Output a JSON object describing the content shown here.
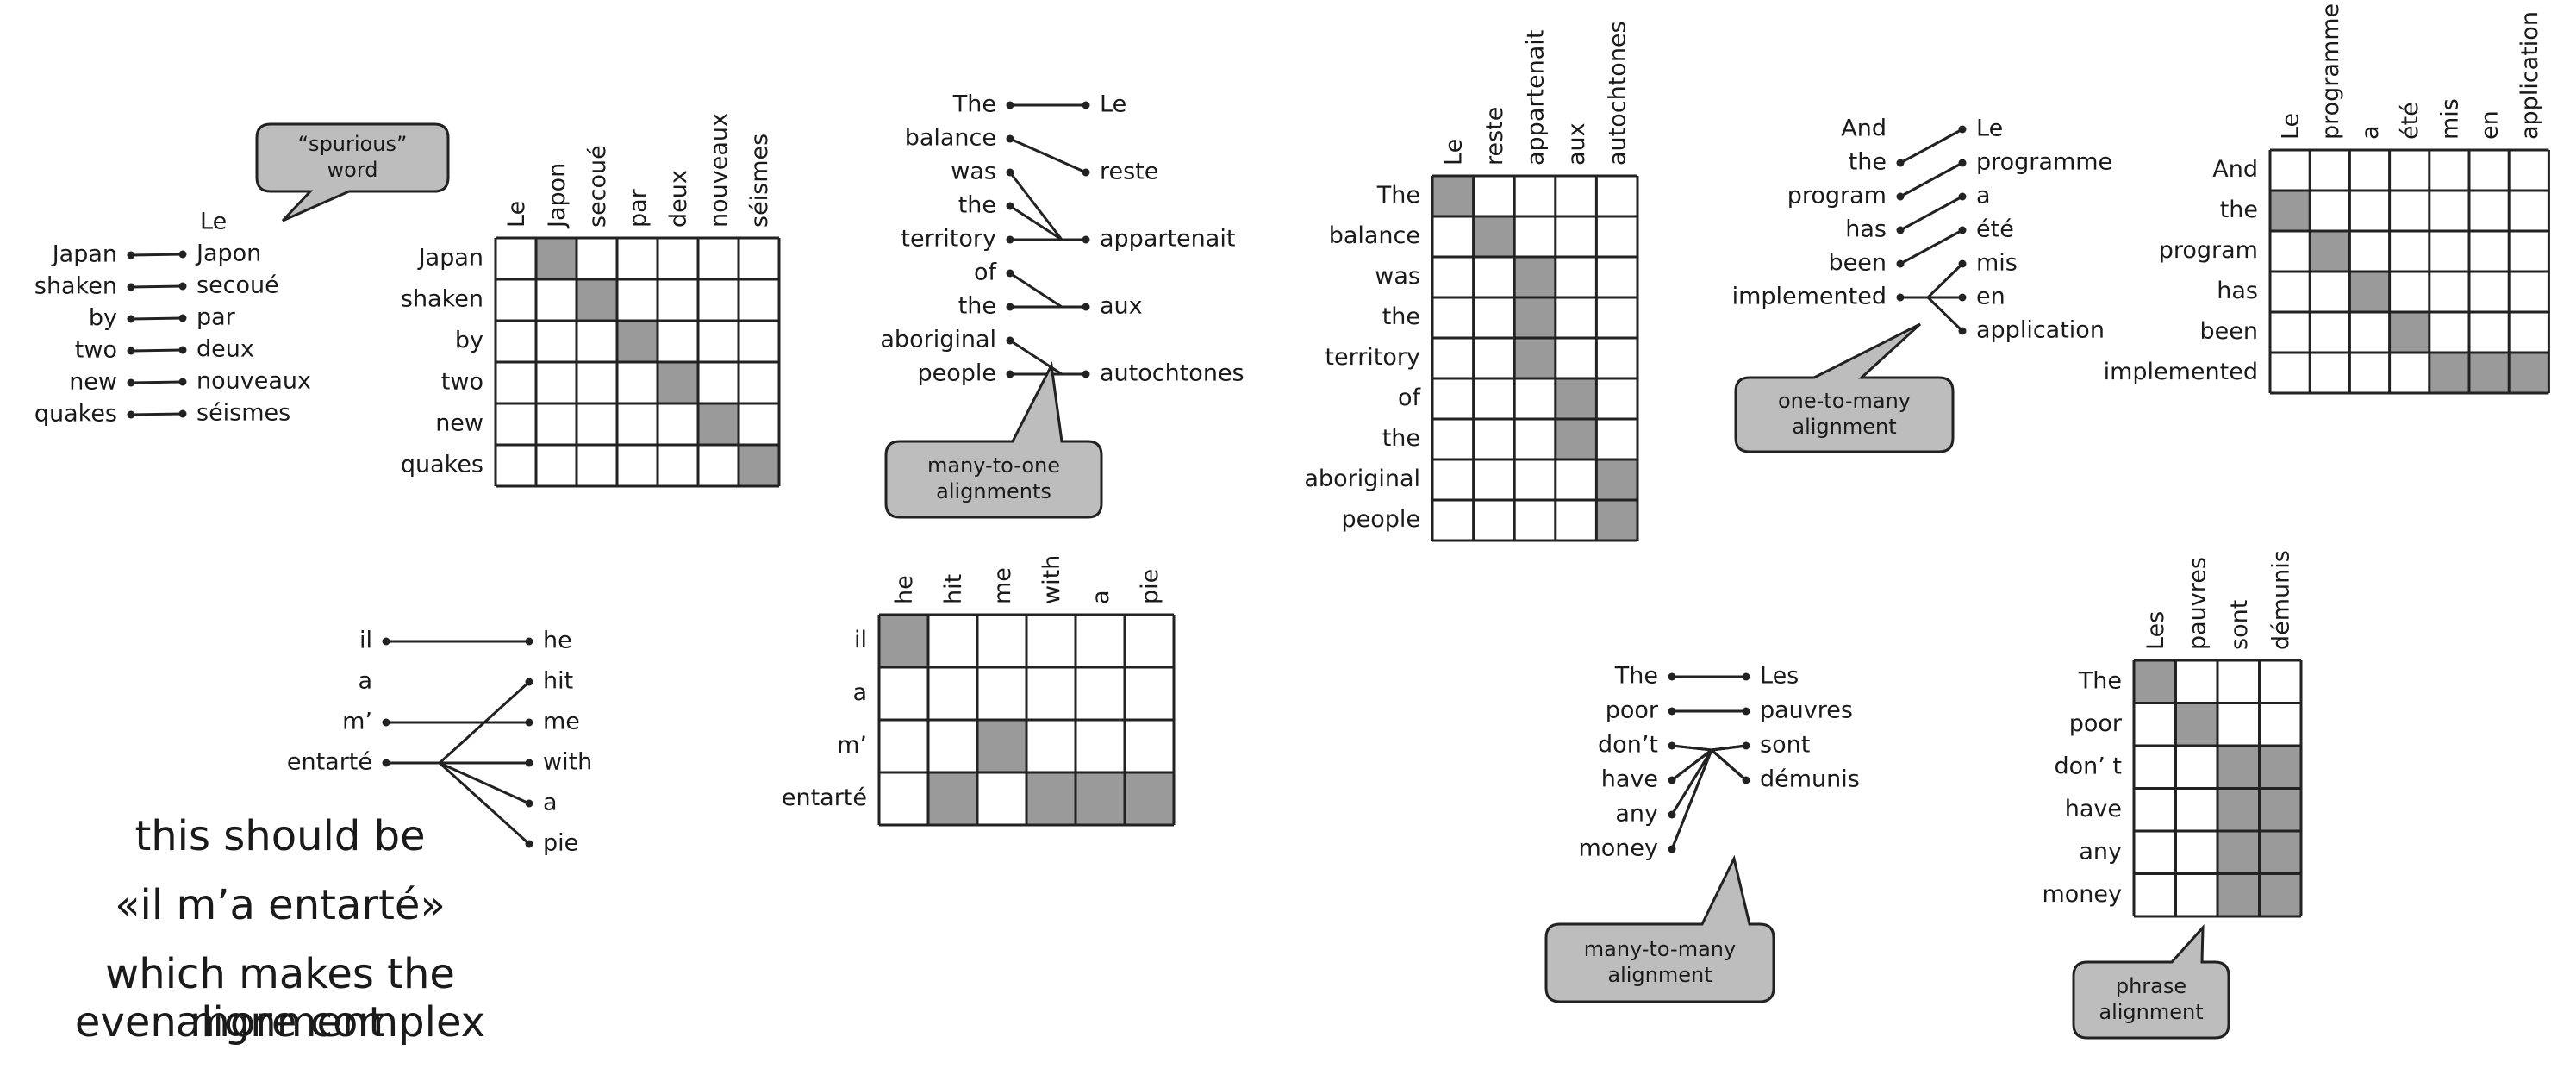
{
  "colors": {
    "fill": "#9a9a9a",
    "line": "#222222",
    "callout": "#bdbdbd"
  },
  "panels": [
    {
      "id": "japan",
      "src": [
        "Japan",
        "shaken",
        "by",
        "two",
        "new",
        "quakes"
      ],
      "tgt": [
        "Le",
        "Japon",
        "secoué",
        "par",
        "deux",
        "nouveaux",
        "séismes"
      ],
      "links": [
        [
          0,
          1
        ],
        [
          1,
          2
        ],
        [
          2,
          3
        ],
        [
          3,
          4
        ],
        [
          4,
          5
        ],
        [
          5,
          6
        ]
      ],
      "grid_rows": [
        "Japan",
        "shaken",
        "by",
        "two",
        "new",
        "quakes"
      ],
      "grid_cols": [
        "Le",
        "Japon",
        "secoué",
        "par",
        "deux",
        "nouveaux",
        "séismes"
      ],
      "cells": [
        [
          0,
          1
        ],
        [
          1,
          2
        ],
        [
          2,
          3
        ],
        [
          3,
          4
        ],
        [
          4,
          5
        ],
        [
          5,
          6
        ]
      ],
      "callout": [
        "“spurious”",
        "word"
      ]
    },
    {
      "id": "balance",
      "src": [
        "The",
        "balance",
        "was",
        "the",
        "territory",
        "of",
        "the",
        "aboriginal",
        "people"
      ],
      "tgt": [
        "Le",
        "reste",
        "appartenait",
        "aux",
        "autochtones"
      ],
      "links": [
        [
          0,
          0
        ],
        [
          1,
          1
        ],
        [
          2,
          2
        ],
        [
          3,
          2
        ],
        [
          4,
          2
        ],
        [
          5,
          3
        ],
        [
          6,
          3
        ],
        [
          7,
          4
        ],
        [
          8,
          4
        ]
      ],
      "grid_rows": [
        "The",
        "balance",
        "was",
        "the",
        "territory",
        "of",
        "the",
        "aboriginal",
        "people"
      ],
      "grid_cols": [
        "Le",
        "reste",
        "appartenait",
        "aux",
        "autochtones"
      ],
      "cells": [
        [
          0,
          0
        ],
        [
          1,
          1
        ],
        [
          2,
          2
        ],
        [
          3,
          2
        ],
        [
          4,
          2
        ],
        [
          5,
          3
        ],
        [
          6,
          3
        ],
        [
          7,
          4
        ],
        [
          8,
          4
        ]
      ],
      "callout": [
        "many-to-one",
        "alignments"
      ]
    },
    {
      "id": "program",
      "src": [
        "And",
        "the",
        "program",
        "has",
        "been",
        "implemented"
      ],
      "tgt": [
        "Le",
        "programme",
        "a",
        "été",
        "mis",
        "en",
        "application"
      ],
      "links": [
        [
          1,
          0
        ],
        [
          2,
          1
        ],
        [
          3,
          2
        ],
        [
          4,
          3
        ],
        [
          5,
          4
        ],
        [
          5,
          5
        ],
        [
          5,
          6
        ]
      ],
      "grid_rows": [
        "And",
        "the",
        "program",
        "has",
        "been",
        "implemented"
      ],
      "grid_cols": [
        "Le",
        "programme",
        "a",
        "été",
        "mis",
        "en",
        "application"
      ],
      "cells": [
        [
          1,
          0
        ],
        [
          2,
          1
        ],
        [
          3,
          2
        ],
        [
          4,
          3
        ],
        [
          5,
          4
        ],
        [
          5,
          5
        ],
        [
          5,
          6
        ]
      ],
      "callout": [
        "one-to-many",
        "alignment"
      ]
    },
    {
      "id": "entarte",
      "src": [
        "il",
        "a",
        "m’",
        "entarté"
      ],
      "tgt": [
        "he",
        "hit",
        "me",
        "with",
        "a",
        "pie"
      ],
      "links": [
        [
          0,
          0
        ],
        [
          2,
          2
        ],
        [
          3,
          1
        ],
        [
          3,
          3
        ],
        [
          3,
          4
        ],
        [
          3,
          5
        ]
      ],
      "grid_rows": [
        "il",
        "a",
        "m’",
        "entarté"
      ],
      "grid_cols": [
        "he",
        "hit",
        "me",
        "with",
        "a",
        "pie"
      ],
      "cells": [
        [
          0,
          0
        ],
        [
          2,
          2
        ],
        [
          3,
          1
        ],
        [
          3,
          3
        ],
        [
          3,
          4
        ],
        [
          3,
          5
        ]
      ],
      "note": [
        "this should be",
        "«il m’a entarté»",
        "which makes the alignment",
        "even more complex"
      ]
    },
    {
      "id": "poor",
      "src": [
        "The",
        "poor",
        "don’t",
        "have",
        "any",
        "money"
      ],
      "tgt": [
        "Les",
        "pauvres",
        "sont",
        "démunis"
      ],
      "links": [
        [
          0,
          0
        ],
        [
          1,
          1
        ],
        [
          2,
          2
        ],
        [
          2,
          3
        ],
        [
          3,
          2
        ],
        [
          3,
          3
        ],
        [
          4,
          2
        ],
        [
          4,
          3
        ],
        [
          5,
          2
        ],
        [
          5,
          3
        ]
      ],
      "grid_rows": [
        "The",
        "poor",
        "don’ t",
        "have",
        "any",
        "money"
      ],
      "grid_cols": [
        "Les",
        "pauvres",
        "sont",
        "démunis"
      ],
      "cells": [
        [
          0,
          0
        ],
        [
          1,
          1
        ],
        [
          2,
          2
        ],
        [
          2,
          3
        ],
        [
          3,
          2
        ],
        [
          3,
          3
        ],
        [
          4,
          2
        ],
        [
          4,
          3
        ],
        [
          5,
          2
        ],
        [
          5,
          3
        ]
      ],
      "callout": [
        "many-to-many",
        "alignment"
      ],
      "callout2": [
        "phrase",
        "alignment"
      ]
    }
  ]
}
